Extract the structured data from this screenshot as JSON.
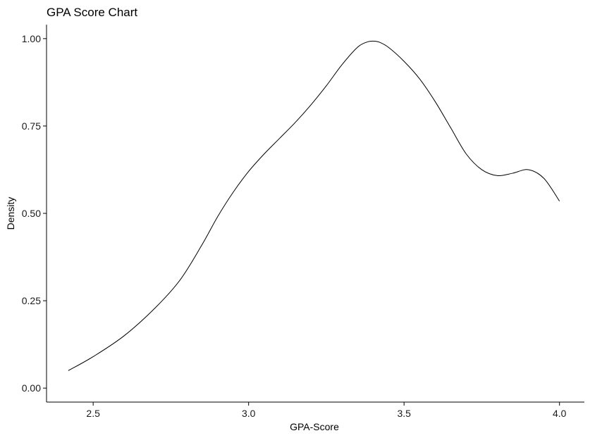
{
  "chart_data": {
    "type": "line",
    "title": "GPA Score Chart",
    "xlabel": "GPA-Score",
    "ylabel": "Density",
    "xlim": [
      2.35,
      4.08
    ],
    "ylim": [
      -0.04,
      1.04
    ],
    "xticks": [
      2.5,
      3.0,
      3.5,
      4.0
    ],
    "xtick_labels": [
      "2.5",
      "3.0",
      "3.5",
      "4.0"
    ],
    "yticks": [
      0.0,
      0.25,
      0.5,
      0.75,
      1.0
    ],
    "ytick_labels": [
      "0.00",
      "0.25",
      "0.50",
      "0.75",
      "1.00"
    ],
    "grid": false,
    "legend": "none",
    "line_color": "#000000",
    "series": [
      {
        "x": [
          2.42,
          2.5,
          2.6,
          2.7,
          2.78,
          2.85,
          2.9,
          2.95,
          3.0,
          3.05,
          3.1,
          3.15,
          3.2,
          3.25,
          3.3,
          3.35,
          3.38,
          3.4,
          3.42,
          3.45,
          3.5,
          3.55,
          3.6,
          3.65,
          3.7,
          3.75,
          3.8,
          3.85,
          3.9,
          3.95,
          4.0
        ],
        "y": [
          0.05,
          0.09,
          0.15,
          0.23,
          0.31,
          0.41,
          0.49,
          0.56,
          0.62,
          0.67,
          0.715,
          0.76,
          0.81,
          0.865,
          0.925,
          0.975,
          0.99,
          0.993,
          0.99,
          0.975,
          0.935,
          0.885,
          0.82,
          0.745,
          0.67,
          0.625,
          0.608,
          0.615,
          0.625,
          0.6,
          0.535
        ]
      }
    ]
  }
}
